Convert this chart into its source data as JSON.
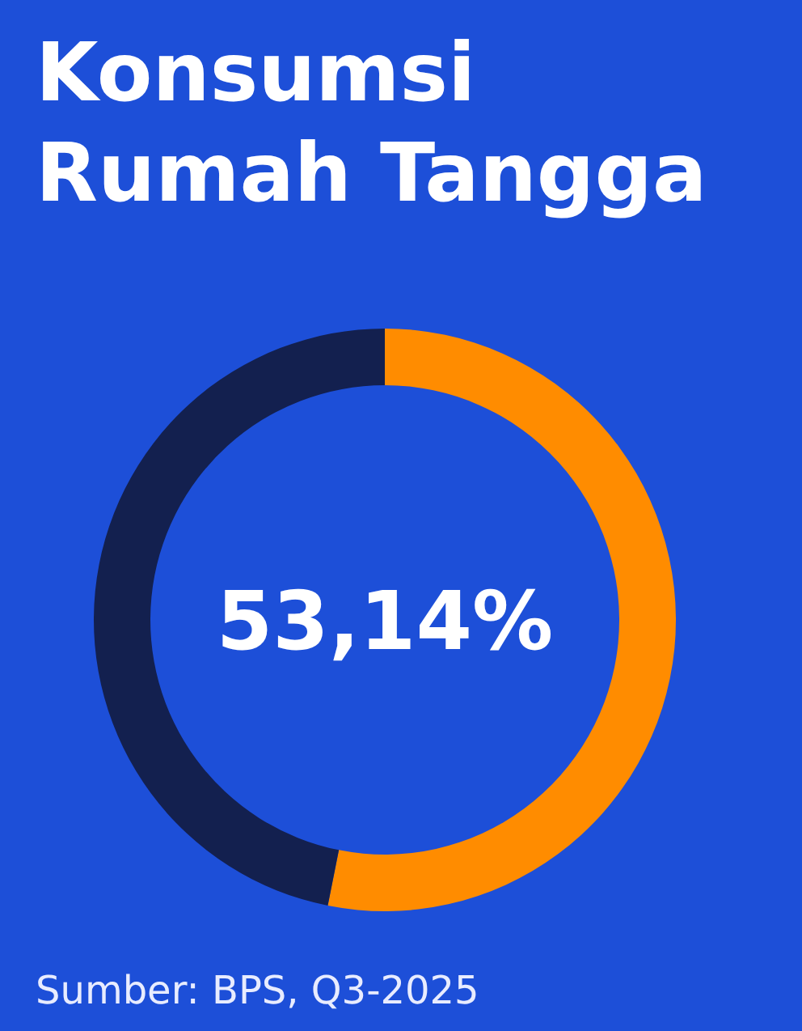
{
  "chart_data": {
    "type": "donut",
    "title": "Konsumsi Rumah Tangga",
    "categories": [
      null,
      null
    ],
    "values": [
      53.14,
      46.86
    ],
    "colors": [
      "#ff8c00",
      "#13204f"
    ],
    "annotations": [
      "53,14%",
      "Sumber: BPS, Q3-2025"
    ]
  }
}
